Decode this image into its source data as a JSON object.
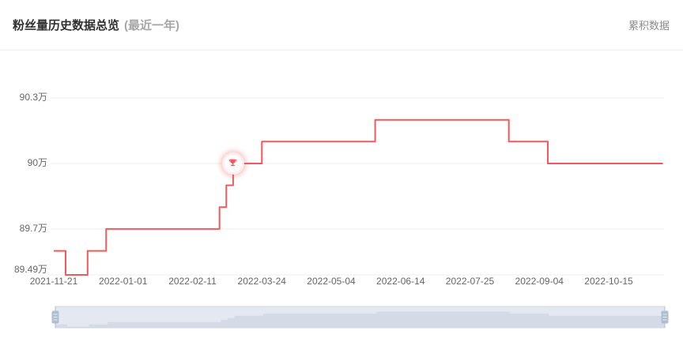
{
  "header": {
    "title": "粉丝量历史数据总览",
    "subtitle": "(最近一年)",
    "cumulative_link": "累积数据"
  },
  "chart_data": {
    "type": "line",
    "step": "end",
    "title": "粉丝量历史数据总览 (最近一年)",
    "unit": "万",
    "x_start": "2021-11-21",
    "x_tick_interval_days": 41,
    "x_tick_labels": [
      "2021-11-21",
      "2022-01-01",
      "2022-02-11",
      "2022-03-24",
      "2022-05-04",
      "2022-06-14",
      "2022-07-25",
      "2022-09-04",
      "2022-10-15"
    ],
    "y_ticks": [
      {
        "label": "90.3万",
        "value": 90.3
      },
      {
        "label": "90万",
        "value": 90.0
      },
      {
        "label": "89.7万",
        "value": 89.7
      },
      {
        "label": "89.49万",
        "value": 89.49
      }
    ],
    "ylim": [
      89.49,
      90.31
    ],
    "grid": true,
    "legend": false,
    "series": [
      {
        "name": "粉丝量",
        "color": "#f05a5a",
        "points": [
          {
            "date": "2021-11-21",
            "value_wan": 89.6
          },
          {
            "date": "2021-11-28",
            "value_wan": 89.49
          },
          {
            "date": "2021-12-11",
            "value_wan": 89.6
          },
          {
            "date": "2021-12-22",
            "value_wan": 89.7
          },
          {
            "date": "2022-02-27",
            "value_wan": 89.8
          },
          {
            "date": "2022-03-03",
            "value_wan": 89.9
          },
          {
            "date": "2022-03-07",
            "value_wan": 90.0
          },
          {
            "date": "2022-03-24",
            "value_wan": 90.1
          },
          {
            "date": "2022-05-30",
            "value_wan": 90.2
          },
          {
            "date": "2022-08-17",
            "value_wan": 90.1
          },
          {
            "date": "2022-09-09",
            "value_wan": 90.0
          },
          {
            "date": "2022-11-16",
            "value_wan": 90.0
          }
        ]
      }
    ],
    "marker": {
      "type": "trophy",
      "date": "2022-03-07",
      "value_wan": 90.0
    }
  },
  "datazoom": {
    "window_start_pct": 0,
    "window_end_pct": 100
  },
  "colors": {
    "line": "#f05a5a",
    "grid": "#ededed",
    "axis_label": "#666666",
    "dz_track": "#e3e8f1",
    "dz_track_border": "#ccd4e2",
    "dz_shadow": "#d5dbe6",
    "dz_handle": "#b0bed2",
    "dz_handle_grip": "#e9edf4"
  }
}
